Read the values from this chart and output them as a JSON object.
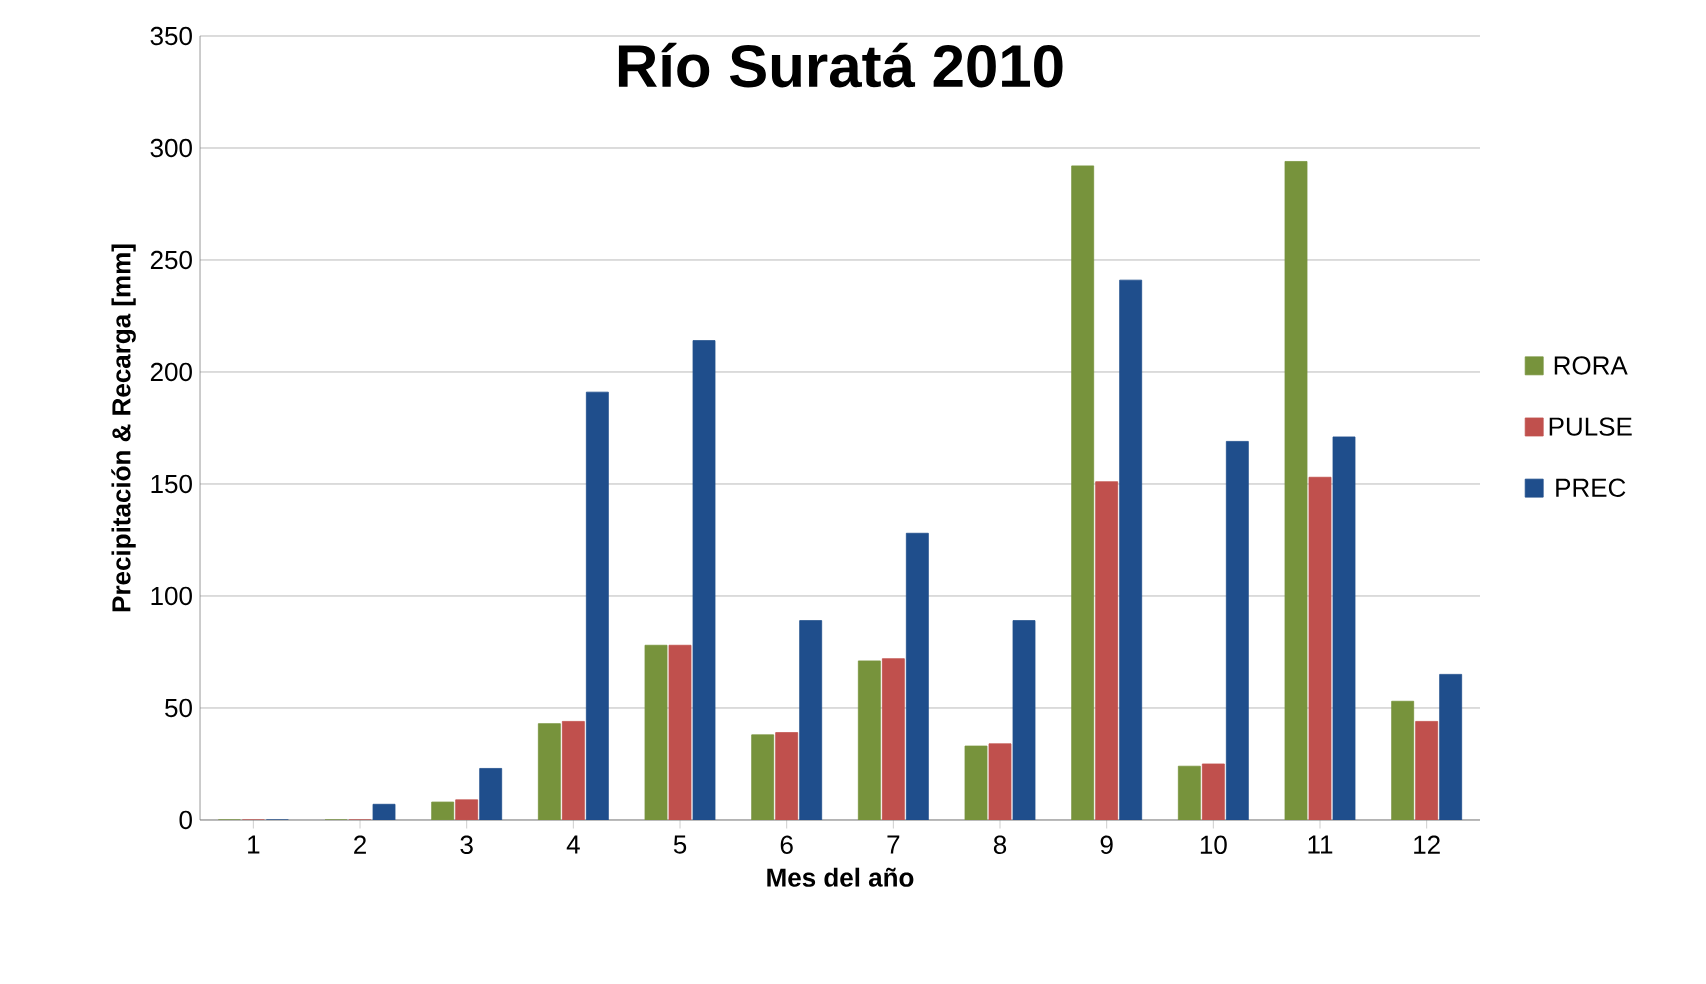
{
  "chart_data": {
    "type": "bar",
    "title": "Río Suratá 2010",
    "xlabel": "Mes del año",
    "ylabel": "Precipitación & Recarga [mm]",
    "categories": [
      "1",
      "2",
      "3",
      "4",
      "5",
      "6",
      "7",
      "8",
      "9",
      "10",
      "11",
      "12"
    ],
    "series": [
      {
        "name": "RORA",
        "color": "#77933c",
        "values": [
          0,
          0,
          8,
          43,
          78,
          38,
          71,
          33,
          292,
          24,
          294,
          53
        ]
      },
      {
        "name": "PULSE",
        "color": "#c0504d",
        "values": [
          0,
          0,
          9,
          44,
          78,
          39,
          72,
          34,
          151,
          25,
          153,
          44
        ]
      },
      {
        "name": "PREC",
        "color": "#1f4e8c",
        "values": [
          0,
          7,
          23,
          191,
          214,
          89,
          128,
          89,
          241,
          169,
          171,
          65
        ]
      }
    ],
    "ylim": [
      0,
      350
    ],
    "yticks": [
      0,
      50,
      100,
      150,
      200,
      250,
      300,
      350
    ],
    "grid": "y",
    "legend": "right"
  }
}
